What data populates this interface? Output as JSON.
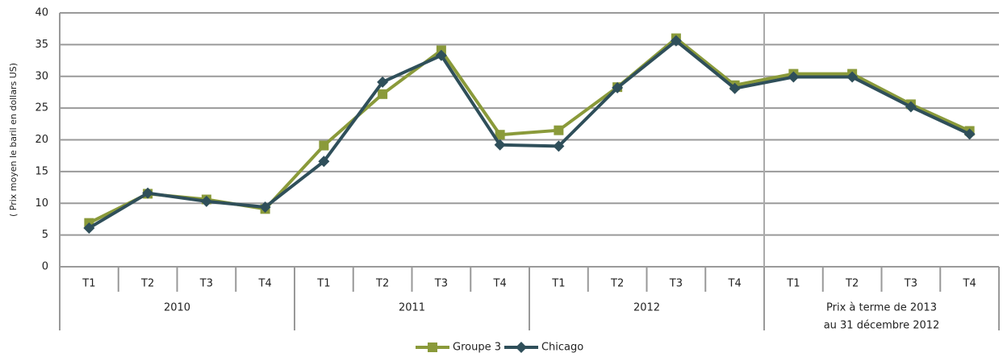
{
  "chart_data": {
    "type": "line",
    "y_label": "( Prix moyen le baril en dollars US)",
    "groups": [
      {
        "label": [
          "2010"
        ],
        "categories": [
          "T1",
          "T2",
          "T3",
          "T4"
        ]
      },
      {
        "label": [
          "2011"
        ],
        "categories": [
          "T1",
          "T2",
          "T3",
          "T4"
        ]
      },
      {
        "label": [
          "2012"
        ],
        "categories": [
          "T1",
          "T2",
          "T3",
          "T4"
        ]
      },
      {
        "label": [
          "Prix à terme de 2013",
          "au 31 décembre 2012"
        ],
        "categories": [
          "T1",
          "T2",
          "T3",
          "T4"
        ]
      }
    ],
    "series": [
      {
        "name": "Groupe 3",
        "color": "#8a9a3a",
        "marker": "square",
        "values": [
          6.9,
          11.5,
          10.6,
          9.1,
          19.1,
          27.2,
          34.1,
          20.8,
          21.5,
          28.3,
          36.0,
          28.6,
          30.4,
          30.4,
          25.6,
          21.4
        ]
      },
      {
        "name": "Chicago",
        "color": "#2f4f5a",
        "marker": "diamond",
        "values": [
          6.1,
          11.6,
          10.3,
          9.4,
          16.6,
          29.1,
          33.3,
          19.2,
          19.0,
          28.2,
          35.6,
          28.1,
          29.9,
          29.9,
          25.2,
          20.9
        ]
      }
    ],
    "ylim": [
      0,
      40
    ],
    "yticks": [
      0,
      5,
      10,
      15,
      20,
      25,
      30,
      35,
      40
    ],
    "grid": true,
    "legend": "bottom"
  }
}
